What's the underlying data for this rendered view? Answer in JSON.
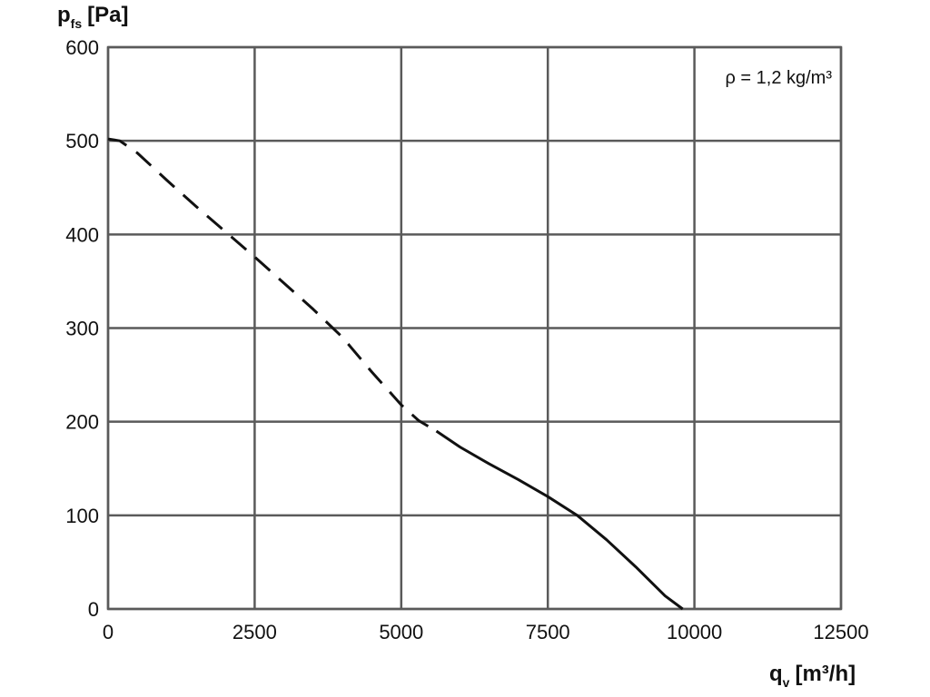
{
  "chart_data": {
    "type": "line",
    "y_axis_title": {
      "main": "p",
      "sub": "fs",
      "unit": "[Pa]"
    },
    "x_axis_title": {
      "main": "q",
      "sub": "v",
      "unit": "[m³/h]"
    },
    "annotation": "ρ = 1,2 kg/m³",
    "xlim": [
      0,
      12500
    ],
    "ylim": [
      0,
      600
    ],
    "x_ticks": [
      0,
      2500,
      5000,
      7500,
      10000,
      12500
    ],
    "y_ticks": [
      0,
      100,
      200,
      300,
      400,
      500,
      600
    ],
    "x_tick_labels": [
      "0",
      "2500",
      "5000",
      "7500",
      "10000",
      "12500"
    ],
    "y_tick_labels": [
      "0",
      "100",
      "200",
      "300",
      "400",
      "500",
      "600"
    ],
    "grid": true,
    "series": [
      {
        "style": "dashed",
        "x": [
          0,
          200,
          500,
          1000,
          1500,
          2000,
          2500,
          3000,
          3500,
          4000,
          4500,
          5000,
          5300,
          5600
        ],
        "y": [
          502,
          500,
          487,
          458,
          430,
          403,
          376,
          348,
          320,
          290,
          253,
          218,
          201,
          190
        ]
      },
      {
        "style": "solid",
        "x": [
          5600,
          6000,
          6500,
          7000,
          7500,
          8000,
          8500,
          9000,
          9500,
          9800
        ],
        "y": [
          190,
          173,
          155,
          138,
          120,
          100,
          74,
          45,
          14,
          0
        ]
      }
    ]
  }
}
